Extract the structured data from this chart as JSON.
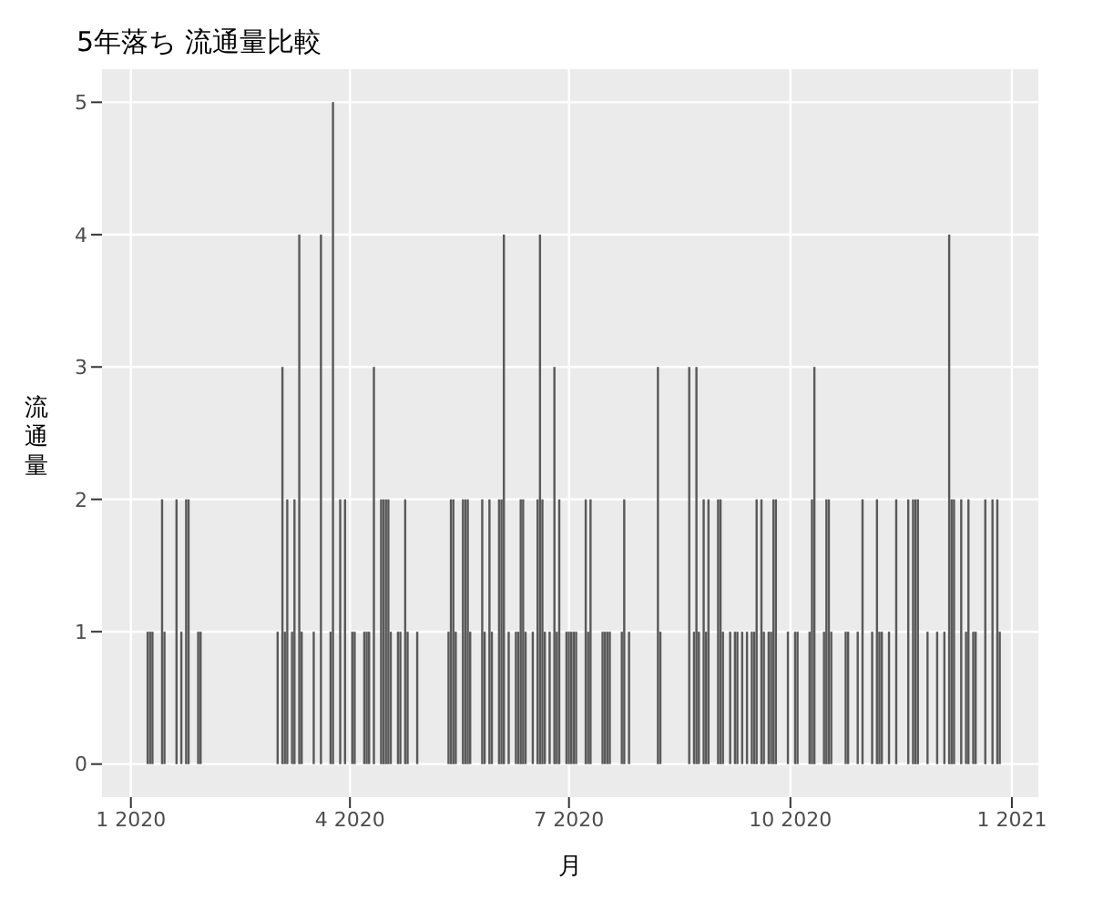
{
  "chart_data": {
    "type": "bar",
    "title": "5年落ち 流通量比較",
    "xlabel": "月",
    "ylabel": "流通量",
    "x": [
      "2020-01-08",
      "2020-01-09",
      "2020-01-10",
      "2020-01-14",
      "2020-01-15",
      "2020-01-20",
      "2020-01-22",
      "2020-01-24",
      "2020-01-25",
      "2020-01-29",
      "2020-01-30",
      "2020-03-02",
      "2020-03-04",
      "2020-03-05",
      "2020-03-06",
      "2020-03-08",
      "2020-03-09",
      "2020-03-11",
      "2020-03-12",
      "2020-03-17",
      "2020-03-20",
      "2020-03-24",
      "2020-03-25",
      "2020-03-28",
      "2020-03-30",
      "2020-04-02",
      "2020-04-03",
      "2020-04-07",
      "2020-04-08",
      "2020-04-09",
      "2020-04-11",
      "2020-04-14",
      "2020-04-15",
      "2020-04-16",
      "2020-04-17",
      "2020-04-18",
      "2020-04-21",
      "2020-04-22",
      "2020-04-24",
      "2020-04-25",
      "2020-04-29",
      "2020-05-12",
      "2020-05-13",
      "2020-05-14",
      "2020-05-15",
      "2020-05-18",
      "2020-05-19",
      "2020-05-20",
      "2020-05-21",
      "2020-05-26",
      "2020-05-27",
      "2020-05-29",
      "2020-05-30",
      "2020-06-02",
      "2020-06-03",
      "2020-06-04",
      "2020-06-06",
      "2020-06-09",
      "2020-06-10",
      "2020-06-11",
      "2020-06-12",
      "2020-06-13",
      "2020-06-16",
      "2020-06-18",
      "2020-06-19",
      "2020-06-20",
      "2020-06-21",
      "2020-06-23",
      "2020-06-25",
      "2020-06-26",
      "2020-06-27",
      "2020-06-30",
      "2020-07-01",
      "2020-07-02",
      "2020-07-03",
      "2020-07-04",
      "2020-07-08",
      "2020-07-09",
      "2020-07-10",
      "2020-07-15",
      "2020-07-16",
      "2020-07-17",
      "2020-07-18",
      "2020-07-23",
      "2020-07-24",
      "2020-07-26",
      "2020-08-07",
      "2020-08-08",
      "2020-08-20",
      "2020-08-22",
      "2020-08-23",
      "2020-08-24",
      "2020-08-26",
      "2020-08-27",
      "2020-08-28",
      "2020-09-01",
      "2020-09-02",
      "2020-09-03",
      "2020-09-06",
      "2020-09-08",
      "2020-09-09",
      "2020-09-11",
      "2020-09-13",
      "2020-09-15",
      "2020-09-16",
      "2020-09-17",
      "2020-09-19",
      "2020-09-20",
      "2020-09-22",
      "2020-09-23",
      "2020-09-24",
      "2020-09-25",
      "2020-09-30",
      "2020-10-03",
      "2020-10-04",
      "2020-10-09",
      "2020-10-10",
      "2020-10-11",
      "2020-10-15",
      "2020-10-16",
      "2020-10-17",
      "2020-10-18",
      "2020-10-24",
      "2020-10-25",
      "2020-10-29",
      "2020-10-31",
      "2020-11-04",
      "2020-11-06",
      "2020-11-07",
      "2020-11-08",
      "2020-11-11",
      "2020-11-14",
      "2020-11-19",
      "2020-11-21",
      "2020-11-22",
      "2020-11-23",
      "2020-11-27",
      "2020-12-01",
      "2020-12-04",
      "2020-12-06",
      "2020-12-07",
      "2020-12-08",
      "2020-12-11",
      "2020-12-13",
      "2020-12-14",
      "2020-12-16",
      "2020-12-17",
      "2020-12-21",
      "2020-12-24",
      "2020-12-26",
      "2020-12-27"
    ],
    "values": [
      1,
      1,
      1,
      2,
      1,
      2,
      1,
      2,
      2,
      1,
      1,
      1,
      3,
      1,
      2,
      1,
      2,
      4,
      1,
      1,
      4,
      1,
      5,
      2,
      2,
      1,
      1,
      1,
      1,
      1,
      3,
      2,
      2,
      2,
      2,
      1,
      1,
      1,
      2,
      1,
      1,
      1,
      2,
      2,
      1,
      2,
      2,
      2,
      1,
      2,
      1,
      2,
      1,
      2,
      2,
      4,
      1,
      1,
      1,
      2,
      2,
      1,
      1,
      2,
      4,
      2,
      1,
      1,
      3,
      1,
      2,
      1,
      1,
      1,
      1,
      1,
      2,
      1,
      2,
      1,
      1,
      1,
      1,
      1,
      2,
      1,
      3,
      1,
      3,
      1,
      3,
      1,
      2,
      1,
      2,
      2,
      2,
      1,
      1,
      1,
      1,
      1,
      1,
      1,
      1,
      2,
      2,
      1,
      1,
      1,
      2,
      2,
      1,
      1,
      1,
      1,
      2,
      3,
      1,
      2,
      2,
      1,
      1,
      1,
      1,
      2,
      1,
      2,
      1,
      1,
      1,
      2,
      2,
      2,
      2,
      2,
      1,
      1,
      1,
      4,
      2,
      2,
      2,
      1,
      2,
      1,
      1,
      2,
      2,
      2,
      1
    ],
    "color": "#595959",
    "xlim": [
      "2019-12-20",
      "2021-01-12"
    ],
    "xticks": [
      {
        "value": "2020-01-01",
        "label": "1 2020"
      },
      {
        "value": "2020-04-01",
        "label": "4 2020"
      },
      {
        "value": "2020-07-01",
        "label": "7 2020"
      },
      {
        "value": "2020-10-01",
        "label": "10 2020"
      },
      {
        "value": "2021-01-01",
        "label": "1 2021"
      }
    ],
    "ylim": [
      -0.25,
      5.25
    ],
    "yticks": [
      0,
      1,
      2,
      3,
      4,
      5
    ],
    "grid": true
  }
}
